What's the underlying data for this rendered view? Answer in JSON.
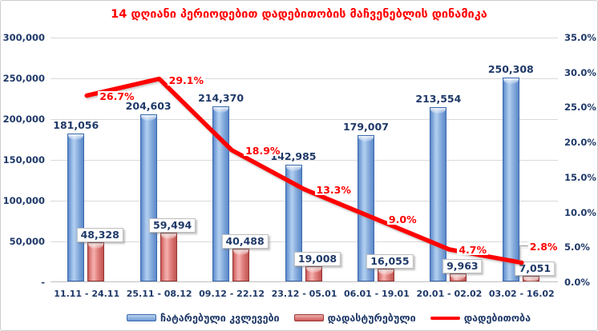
{
  "title": "14 დღიანი პერიოდებით დადებითობის მაჩვენებლის დინამიკა",
  "colors": {
    "title_text": "#ff0000",
    "axis_text": "#1f3968",
    "line": "#ff0000",
    "blue_bar": "#6f9ad6",
    "blue_bar_border": "#3a69ae",
    "red_bar": "#d96a6a",
    "red_bar_border": "#943634",
    "gridline": "#d9d9d9"
  },
  "chart_data": {
    "type": "bar",
    "subtype": "combo-bar-line",
    "title": "14 დღიანი პერიოდებით დადებითობის მაჩვენებლის დინამიკა",
    "categories": [
      "11.11 - 24.11",
      "25.11 - 08.12",
      "09.12 - 22.12",
      "23.12 - 05.01",
      "06.01 - 19.01",
      "20.01 - 02.02",
      "03.02 - 16.02"
    ],
    "series": [
      {
        "name": "ჩატარებული კვლევები",
        "type": "bar",
        "axis": "left",
        "values": [
          181056,
          204603,
          214370,
          142985,
          179007,
          213554,
          250308
        ],
        "labels": [
          "181,056",
          "204,603",
          "214,370",
          "142,985",
          "179,007",
          "213,554",
          "250,308"
        ]
      },
      {
        "name": "დადასტურებული",
        "type": "bar",
        "axis": "left",
        "values": [
          48328,
          59494,
          40488,
          19008,
          16055,
          9963,
          7051
        ],
        "labels": [
          "48,328",
          "59,494",
          "40,488",
          "19,008",
          "16,055",
          "9,963",
          "7,051"
        ]
      },
      {
        "name": "დადებითობა",
        "type": "line",
        "axis": "right",
        "values": [
          26.7,
          29.1,
          18.9,
          13.3,
          9.0,
          4.7,
          2.8
        ],
        "labels": [
          "26.7%",
          "29.1%",
          "18.9%",
          "13.3%",
          "9.0%",
          "4.7%",
          "2.8%"
        ]
      }
    ],
    "left_axis": {
      "min": 0,
      "max": 300000,
      "ticks": [
        "300,000",
        "250,000",
        "200,000",
        "150,000",
        "100,000",
        "50,000",
        "-"
      ]
    },
    "right_axis": {
      "min": 0,
      "max": 35,
      "ticks": [
        "35.0%",
        "30.0%",
        "25.0%",
        "20.0%",
        "15.0%",
        "10.0%",
        "5.0%",
        "0.0%"
      ]
    },
    "grid": true,
    "legend_position": "bottom"
  }
}
